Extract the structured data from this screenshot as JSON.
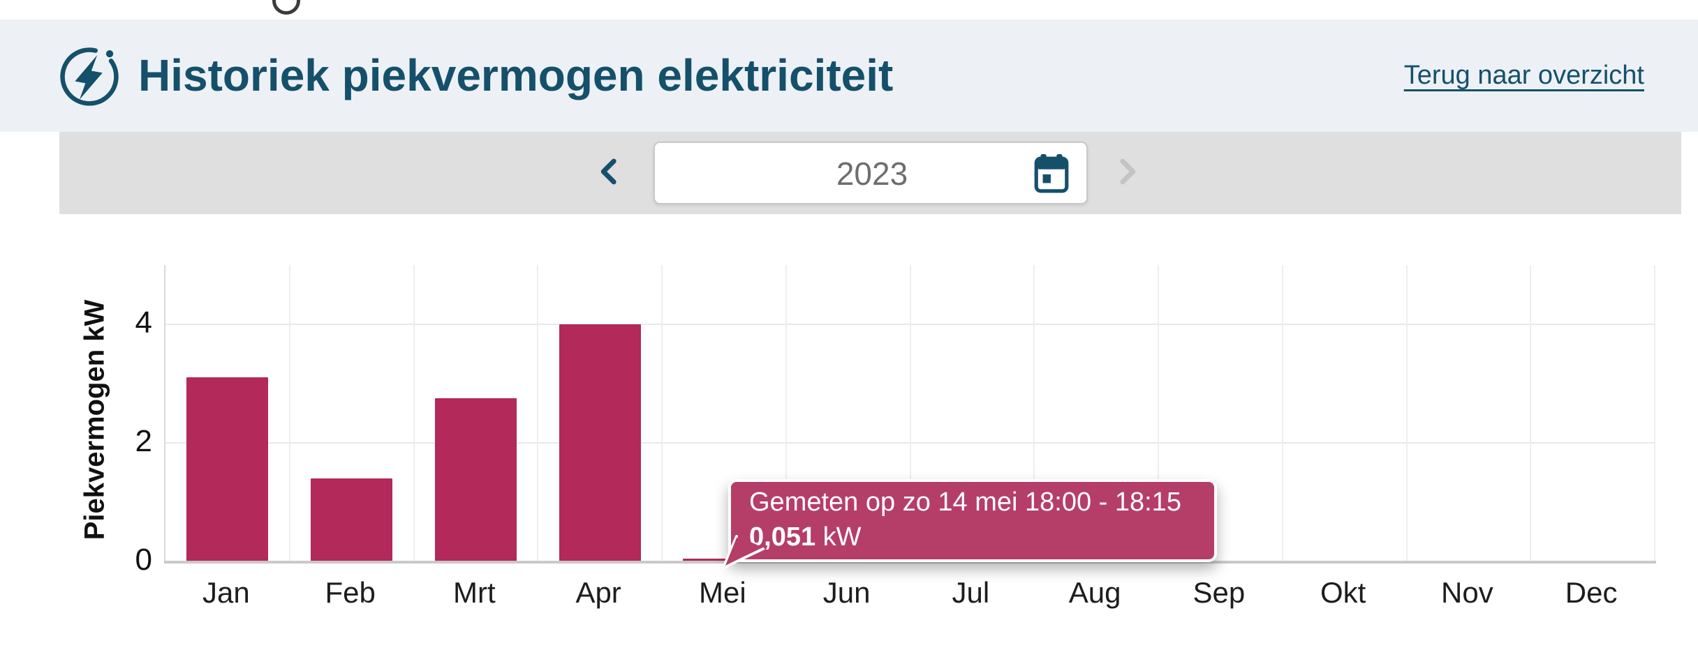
{
  "header": {
    "title": "Historiek piekvermogen elektriciteit",
    "back_link": "Terug naar overzicht"
  },
  "year_selector": {
    "year": "2023",
    "prev_enabled": true,
    "next_enabled": false
  },
  "icons": {
    "header_icon": "energy-bolt-in-circle",
    "prev": "chevron-left",
    "next": "chevron-right",
    "calendar": "calendar",
    "top_edge": "partial-circle"
  },
  "colors": {
    "accent_teal": "#15506b",
    "header_bg": "#edf1f5",
    "selector_bg": "#dfdfdf",
    "bar": "#b2295a",
    "tooltip_bg": "#b53e68",
    "disabled_chevron": "#c3c3c3",
    "year_text": "#6e6e6e"
  },
  "chart_data": {
    "type": "bar",
    "title": "",
    "categories": [
      "Jan",
      "Feb",
      "Mrt",
      "Apr",
      "Mei",
      "Jun",
      "Jul",
      "Aug",
      "Sep",
      "Okt",
      "Nov",
      "Dec"
    ],
    "values": [
      3.1,
      1.4,
      2.75,
      4.0,
      0.051,
      0,
      0,
      0,
      0,
      0,
      0,
      0
    ],
    "ylabel": "Piekvermogen kW",
    "xlabel": "",
    "yticks": [
      0,
      2,
      4
    ],
    "ylim": [
      0,
      5
    ],
    "grid": true,
    "legend": "none",
    "unit": "kW",
    "bar_color": "#b2295a"
  },
  "tooltip": {
    "line1": "Gemeten op zo 14 mei 18:00 - 18:15",
    "value": "0,051",
    "unit": "kW"
  }
}
